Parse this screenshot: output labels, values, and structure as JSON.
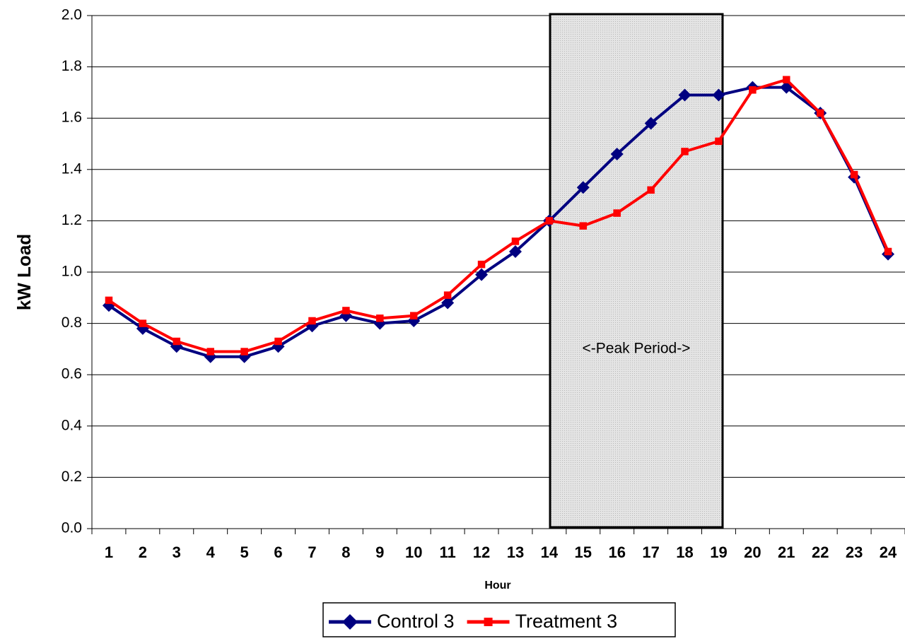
{
  "chart_data": {
    "type": "line",
    "y_label": "kW Load",
    "x_label": "Hour",
    "annotation": "<-Peak Period->",
    "categories": [
      "1",
      "2",
      "3",
      "4",
      "5",
      "6",
      "7",
      "8",
      "9",
      "10",
      "11",
      "12",
      "13",
      "14",
      "15",
      "16",
      "17",
      "18",
      "19",
      "20",
      "21",
      "22",
      "23",
      "24"
    ],
    "series": [
      {
        "name": "Control 3",
        "color": "#000080",
        "marker": "diamond",
        "values": [
          0.87,
          0.78,
          0.71,
          0.67,
          0.67,
          0.71,
          0.79,
          0.83,
          0.8,
          0.81,
          0.88,
          0.99,
          1.08,
          1.2,
          1.33,
          1.46,
          1.58,
          1.69,
          1.69,
          1.72,
          1.72,
          1.62,
          1.37,
          1.07
        ]
      },
      {
        "name": "Treatment 3",
        "color": "#ff0000",
        "marker": "square",
        "values": [
          0.89,
          0.8,
          0.73,
          0.69,
          0.69,
          0.73,
          0.81,
          0.85,
          0.82,
          0.83,
          0.91,
          1.03,
          1.12,
          1.2,
          1.18,
          1.23,
          1.32,
          1.47,
          1.51,
          1.71,
          1.75,
          1.62,
          1.38,
          1.08
        ]
      }
    ],
    "ylim": [
      0,
      2
    ],
    "yticks": [
      {
        "value": 0,
        "label": "0.0"
      },
      0.2,
      0.4,
      0.6,
      0.8,
      {
        "value": 1,
        "label": "1.0"
      },
      1.2,
      1.4,
      1.6,
      1.8,
      {
        "value": 2,
        "label": "2.0"
      }
    ],
    "grid": true,
    "legend": "bottom"
  }
}
